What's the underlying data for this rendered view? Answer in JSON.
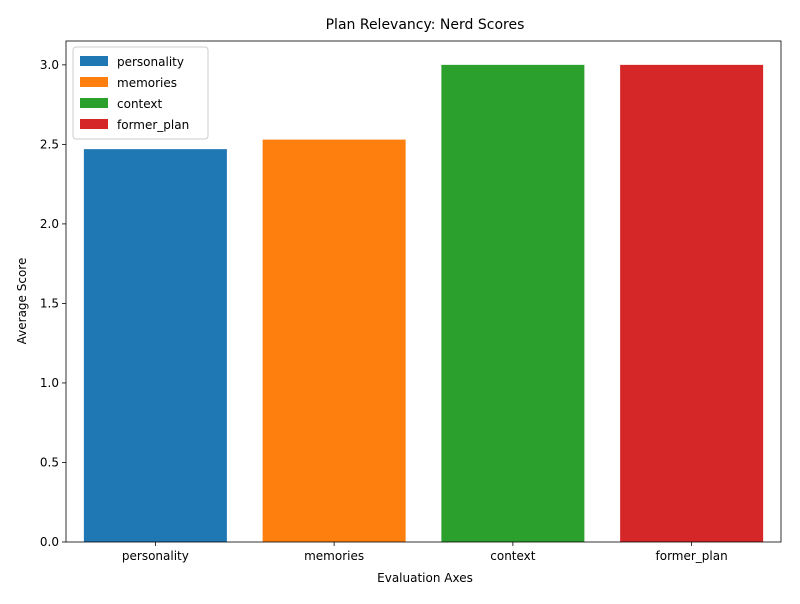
{
  "chart_data": {
    "type": "bar",
    "title": "Plan Relevancy: Nerd Scores",
    "xlabel": "Evaluation Axes",
    "ylabel": "Average Score",
    "categories": [
      "personality",
      "memories",
      "context",
      "former_plan"
    ],
    "values": [
      2.47,
      2.53,
      3.0,
      3.0
    ],
    "colors": [
      "#1f77b4",
      "#ff7f0e",
      "#2ca02c",
      "#d62728"
    ],
    "ylim": [
      0,
      3.15
    ],
    "yticks": [
      0.0,
      0.5,
      1.0,
      1.5,
      2.0,
      2.5,
      3.0
    ],
    "ytick_labels": [
      "0.0",
      "0.5",
      "1.0",
      "1.5",
      "2.0",
      "2.5",
      "3.0"
    ],
    "grid": false,
    "legend": {
      "placement": "top-left",
      "entries": [
        "personality",
        "memories",
        "context",
        "former_plan"
      ]
    }
  }
}
